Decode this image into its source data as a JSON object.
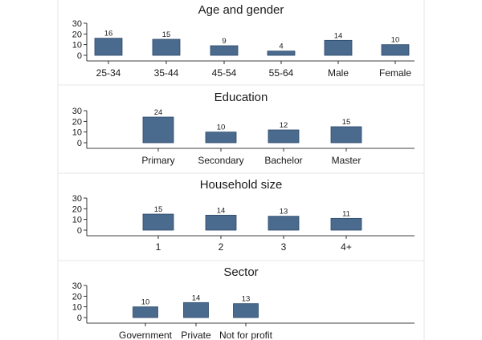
{
  "chart_data": [
    {
      "type": "bar",
      "title": "Age and gender",
      "categories": [
        "25-34",
        "35-44",
        "45-54",
        "55-64",
        "Male",
        "Female"
      ],
      "values": [
        16,
        15,
        9,
        4,
        14,
        10
      ],
      "yticks": [
        0,
        10,
        20,
        30
      ],
      "ylim": [
        0,
        30
      ],
      "xlabel": "",
      "ylabel": "",
      "bar_color": "#4a6a8e"
    },
    {
      "type": "bar",
      "title": "Education",
      "categories": [
        "Primary",
        "Secondary",
        "Bachelor",
        "Master"
      ],
      "values": [
        24,
        10,
        12,
        15
      ],
      "yticks": [
        0,
        10,
        20,
        30
      ],
      "ylim": [
        0,
        30
      ],
      "xlabel": "",
      "ylabel": "",
      "bar_color": "#4a6a8e"
    },
    {
      "type": "bar",
      "title": "Household size",
      "categories": [
        "1",
        "2",
        "3",
        "4+"
      ],
      "values": [
        15,
        14,
        13,
        11
      ],
      "yticks": [
        0,
        10,
        20,
        30
      ],
      "ylim": [
        0,
        30
      ],
      "xlabel": "",
      "ylabel": "",
      "bar_color": "#4a6a8e"
    },
    {
      "type": "bar",
      "title": "Sector",
      "categories": [
        "Government",
        "Private",
        "Not for profit"
      ],
      "values": [
        10,
        14,
        13
      ],
      "yticks": [
        0,
        10,
        20,
        30
      ],
      "ylim": [
        0,
        30
      ],
      "xlabel": "",
      "ylabel": "",
      "bar_color": "#4a6a8e"
    }
  ]
}
